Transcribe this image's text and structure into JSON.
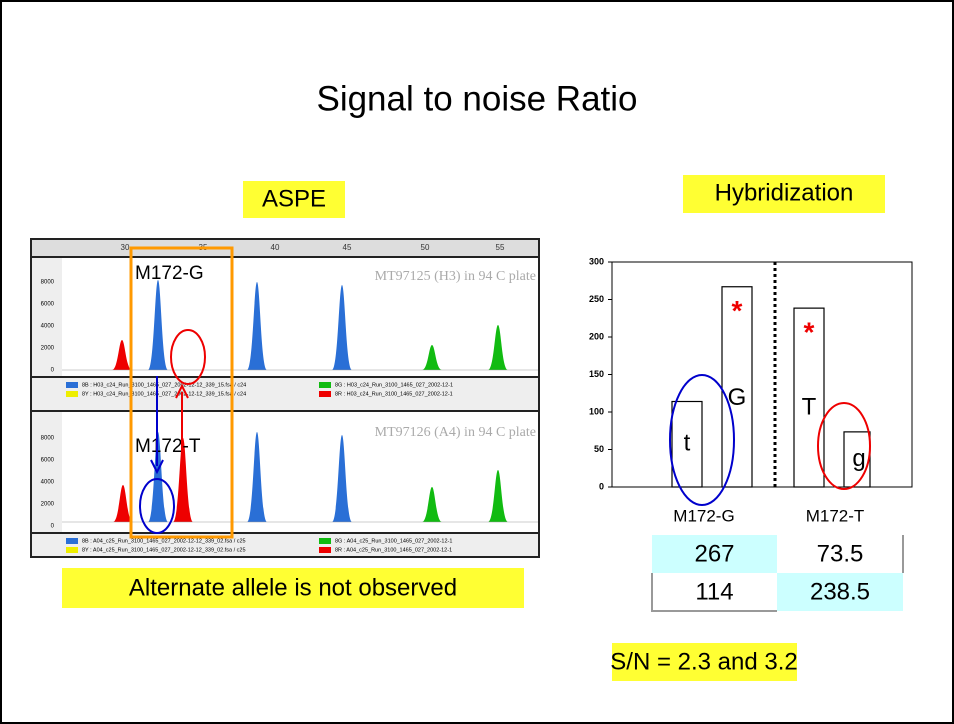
{
  "title": "Signal to noise Ratio",
  "aspe": {
    "label": "ASPE",
    "xticks": [
      30,
      35,
      40,
      45,
      50,
      55
    ],
    "panels": [
      {
        "yticks": [
          8000,
          6000,
          4000,
          2000,
          0
        ],
        "marker": "M172-G",
        "sample": "MT97125 (H3) in 94 C plate",
        "files": [
          "8B : H03_c24_Run_3100_1465_027_2002-12-12_339_15.fsa / c24",
          "8Y : H03_c24_Run_3100_1465_027_2002-12-12_339_15.fsa / c24",
          "8G : H03_c24_Run_3100_1465_027_2002-12-1",
          "8R : H03_c24_Run_3100_1465_027_2002-12-1"
        ]
      },
      {
        "yticks": [
          8000,
          6000,
          4000,
          2000,
          0
        ],
        "marker": "M172-T",
        "sample": "MT97126 (A4) in 94 C plate",
        "files": [
          "8B : A04_c25_Run_3100_1465_027_2002-12-12_339_02.fsa / c25",
          "8Y : A04_c25_Run_3100_1465_027_2002-12-12_339_02.fsa / c25",
          "8G : A04_c25_Run_3100_1465_027_2002-12-1",
          "8R : A04_c25_Run_3100_1465_027_2002-12-1"
        ]
      }
    ],
    "caption": "Alternate allele is not observed"
  },
  "hybridization": {
    "label": "Hybridization"
  },
  "chart_data": {
    "type": "bar",
    "categories": [
      "M172-G",
      "M172-T"
    ],
    "series": [
      {
        "values": [
          114,
          238.5
        ],
        "bar_labels": [
          "t",
          "T"
        ],
        "flags": [
          null,
          "*"
        ],
        "color": "#ffffff"
      },
      {
        "values": [
          267,
          73.5
        ],
        "bar_labels": [
          "G",
          "g"
        ],
        "flags": [
          "*",
          null
        ],
        "color": "#ffffff"
      }
    ],
    "ylim": [
      0,
      300
    ],
    "yticks": [
      0,
      50,
      100,
      150,
      200,
      250,
      300
    ]
  },
  "table": {
    "rows": [
      [
        267,
        73.5
      ],
      [
        114,
        238.5
      ]
    ]
  },
  "sn": "S/N = 2.3 and 3.2"
}
